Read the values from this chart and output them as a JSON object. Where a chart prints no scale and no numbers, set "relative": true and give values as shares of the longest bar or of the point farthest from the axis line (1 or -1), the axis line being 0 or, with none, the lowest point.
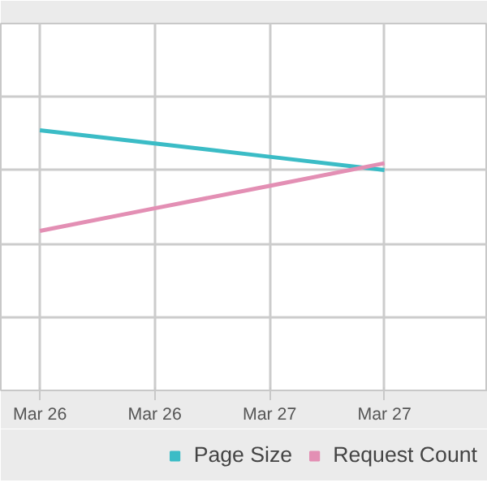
{
  "chart_data": {
    "type": "line",
    "relative": true,
    "categories": [
      "Mar 26",
      "Mar 26",
      "Mar 27",
      "Mar 27"
    ],
    "series": [
      {
        "name": "Page Size",
        "color": "#3bbcc6",
        "values": [
          1,
          0.949,
          0.898,
          0.847
        ]
      },
      {
        "name": "Request Count",
        "color": "#e38fb4",
        "values": [
          0.613,
          0.7,
          0.786,
          0.873
        ]
      }
    ],
    "grid": true,
    "legend": "bottom",
    "line_style": "solid"
  }
}
